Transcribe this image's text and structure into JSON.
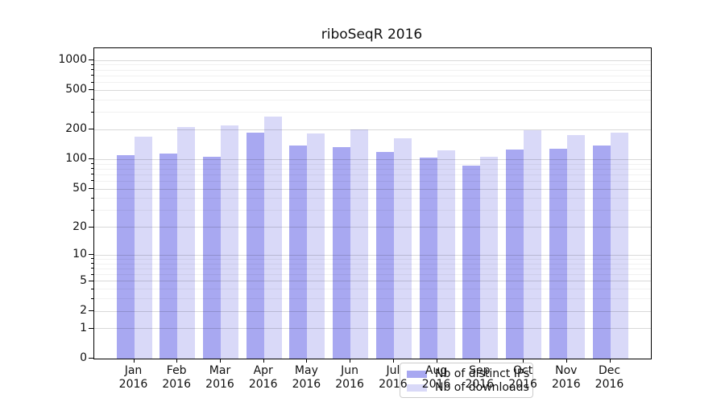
{
  "chart_data": {
    "type": "bar",
    "title": "riboSeqR 2016",
    "xlabel": "",
    "ylabel": "",
    "y_scale": "log10(value+1)",
    "grid": true,
    "legend_position": "lower center inside plot",
    "categories": [
      "Jan 2016",
      "Feb 2016",
      "Mar 2016",
      "Apr 2016",
      "May 2016",
      "Jun 2016",
      "Jul 2016",
      "Aug 2016",
      "Sep 2016",
      "Oct 2016",
      "Nov 2016",
      "Dec 2016"
    ],
    "month_labels": [
      {
        "line1": "Jan",
        "line2": "2016"
      },
      {
        "line1": "Feb",
        "line2": "2016"
      },
      {
        "line1": "Mar",
        "line2": "2016"
      },
      {
        "line1": "Apr",
        "line2": "2016"
      },
      {
        "line1": "May",
        "line2": "2016"
      },
      {
        "line1": "Jun",
        "line2": "2016"
      },
      {
        "line1": "Jul",
        "line2": "2016"
      },
      {
        "line1": "Aug",
        "line2": "2016"
      },
      {
        "line1": "Sep",
        "line2": "2016"
      },
      {
        "line1": "Oct",
        "line2": "2016"
      },
      {
        "line1": "Nov",
        "line2": "2016"
      },
      {
        "line1": "Dec",
        "line2": "2016"
      }
    ],
    "series": [
      {
        "name": "Nb of distinct IPs",
        "color": "#a8a8f1",
        "values": [
          110,
          115,
          107,
          189,
          138,
          134,
          120,
          104,
          87,
          126,
          129,
          138
        ]
      },
      {
        "name": "Nb of downloads",
        "color": "#d9d9f8",
        "values": [
          170,
          215,
          221,
          270,
          184,
          200,
          163,
          123,
          106,
          197,
          177,
          187
        ]
      }
    ],
    "y_ticks": [
      0,
      1,
      2,
      5,
      10,
      20,
      50,
      100,
      200,
      500,
      1000
    ],
    "y_minor_ticks": [
      3,
      4,
      6,
      7,
      8,
      9,
      30,
      40,
      60,
      70,
      80,
      90,
      300,
      400,
      600,
      700,
      800,
      900
    ],
    "ylim": [
      0,
      1330
    ]
  },
  "colors": {
    "background": "#ffffff",
    "axis": "#000000",
    "text": "#111111",
    "grid_major": "rgba(0,0,0,0.15)",
    "grid_minor": "rgba(0,0,0,0.055)",
    "legend_border": "#cccccc"
  }
}
